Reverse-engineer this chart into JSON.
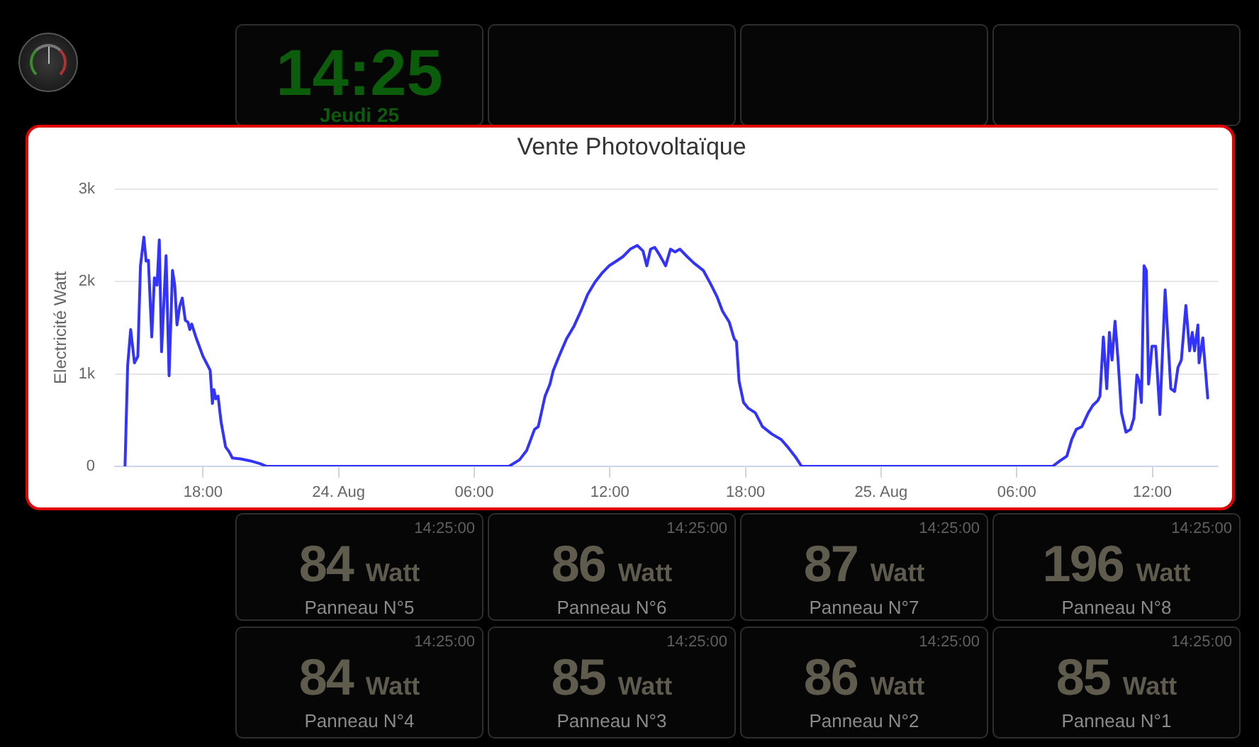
{
  "chart_data": {
    "type": "line",
    "title": "Vente Photovoltaïque",
    "ylabel": "Electricité Watt",
    "color": "#3333ff",
    "x": [
      "--08-23T14:33",
      "--08-23T14:40",
      "--08-23T14:48",
      "--08-23T14:58",
      "--08-23T15:07",
      "--08-23T15:14",
      "--08-23T15:23",
      "--08-23T15:29",
      "--08-23T15:35",
      "--08-23T15:44",
      "--08-23T15:51",
      "--08-23T15:58",
      "--08-23T16:04",
      "--08-23T16:10",
      "--08-23T16:22",
      "--08-23T16:30",
      "--08-23T16:39",
      "--08-23T16:45",
      "--08-23T16:51",
      "--08-23T16:58",
      "--08-23T17:05",
      "--08-23T17:13",
      "--08-23T17:20",
      "--08-23T17:25",
      "--08-23T17:30",
      "--08-23T17:41",
      "--08-23T18:00",
      "--08-23T18:19",
      "--08-23T18:25",
      "--08-23T18:29",
      "--08-23T18:34",
      "--08-23T18:40",
      "--08-23T18:48",
      "--08-23T19:00",
      "--08-23T19:09",
      "--08-23T19:18",
      "--08-23T19:40",
      "--08-23T20:05",
      "--08-23T20:31",
      "--08-23T20:49",
      "--08-24T07:32",
      "--08-24T08:00",
      "--08-24T08:19",
      "--08-24T08:40",
      "--08-24T08:50",
      "--08-24T09:08",
      "--08-24T09:21",
      "--08-24T09:30",
      "--08-24T09:46",
      "--08-24T10:05",
      "--08-24T10:24",
      "--08-24T10:43",
      "--08-24T11:01",
      "--08-24T11:20",
      "--08-24T11:39",
      "--08-24T11:58",
      "--08-24T12:17",
      "--08-24T12:35",
      "--08-24T12:54",
      "--08-24T13:13",
      "--08-24T13:28",
      "--08-24T13:38",
      "--08-24T13:48",
      "--08-24T13:59",
      "--08-24T14:10",
      "--08-24T14:28",
      "--08-24T14:41",
      "--08-24T14:53",
      "--08-24T15:06",
      "--08-24T15:25",
      "--08-24T15:43",
      "--08-24T16:08",
      "--08-24T16:28",
      "--08-24T16:44",
      "--08-24T16:59",
      "--08-24T17:17",
      "--08-24T17:30",
      "--08-24T17:36",
      "--08-24T17:43",
      "--08-24T17:55",
      "--08-24T18:07",
      "--08-24T18:26",
      "--08-24T18:45",
      "--08-24T19:10",
      "--08-24T19:35",
      "--08-24T19:54",
      "--08-24T20:13",
      "--08-24T20:29",
      "--08-25T07:35",
      "--08-25T07:55",
      "--08-25T08:13",
      "--08-25T08:26",
      "--08-25T08:38",
      "--08-25T08:53",
      "--08-25T09:10",
      "--08-25T09:22",
      "--08-25T09:35",
      "--08-25T09:41",
      "--08-25T09:50",
      "--08-25T09:59",
      "--08-25T10:06",
      "--08-25T10:13",
      "--08-25T10:21",
      "--08-25T10:29",
      "--08-25T10:38",
      "--08-25T10:50",
      "--08-25T11:02",
      "--08-25T11:11",
      "--08-25T11:19",
      "--08-25T11:25",
      "--08-25T11:31",
      "--08-25T11:38",
      "--08-25T11:44",
      "--08-25T11:50",
      "--08-25T11:59",
      "--08-25T12:09",
      "--08-25T12:20",
      "--08-25T12:34",
      "--08-25T12:49",
      "--08-25T12:59",
      "--08-25T13:08",
      "--08-25T13:17",
      "--08-25T13:29",
      "--08-25T13:39",
      "--08-25T13:46",
      "--08-25T13:52",
      "--08-25T14:01",
      "--08-25T14:04",
      "--08-25T14:14",
      "--08-25T14:27"
    ],
    "values": [
      0,
      1090,
      1480,
      1120,
      1190,
      2170,
      2480,
      2220,
      2230,
      1400,
      2040,
      1960,
      2450,
      1240,
      2280,
      980,
      2120,
      1960,
      1530,
      1730,
      1820,
      1580,
      1560,
      1480,
      1540,
      1400,
      1190,
      1040,
      680,
      830,
      730,
      760,
      480,
      210,
      160,
      90,
      80,
      60,
      30,
      0,
      0,
      70,
      170,
      400,
      430,
      760,
      890,
      1040,
      1200,
      1380,
      1510,
      1680,
      1860,
      1990,
      2090,
      2170,
      2220,
      2270,
      2350,
      2390,
      2330,
      2170,
      2350,
      2370,
      2300,
      2170,
      2350,
      2320,
      2350,
      2270,
      2200,
      2120,
      1970,
      1840,
      1680,
      1560,
      1380,
      1350,
      920,
      690,
      630,
      580,
      430,
      350,
      290,
      200,
      100,
      0,
      0,
      60,
      110,
      290,
      400,
      430,
      580,
      660,
      710,
      760,
      1400,
      840,
      1450,
      1150,
      1570,
      1150,
      580,
      370,
      400,
      520,
      990,
      920,
      690,
      2170,
      2120,
      890,
      1300,
      1300,
      560,
      1910,
      840,
      810,
      1070,
      1150,
      1740,
      1250,
      1450,
      1250,
      1530,
      1120,
      1390,
      740
    ],
    "xlim": [
      "--08-23T14:06",
      "--08-25T14:54"
    ],
    "xticks": [
      {
        "value": "--08-23T18:00",
        "label": "18:00"
      },
      {
        "value": "--08-24T00:00",
        "label": "24. Aug"
      },
      {
        "value": "--08-24T06:00",
        "label": "06:00"
      },
      {
        "value": "--08-24T12:00",
        "label": "12:00"
      },
      {
        "value": "--08-24T18:00",
        "label": "18:00"
      },
      {
        "value": "--08-25T00:00",
        "label": "25. Aug"
      },
      {
        "value": "--08-25T06:00",
        "label": "06:00"
      },
      {
        "value": "--08-25T12:00",
        "label": "12:00"
      }
    ],
    "ylim": [
      0,
      3000
    ],
    "yticks": [
      0,
      {
        "value": 1000,
        "label": "1k"
      },
      {
        "value": 2000,
        "label": "2k"
      },
      {
        "value": 3000,
        "label": "3k"
      }
    ],
    "grid": "y",
    "annotations": [
      "14:25",
      "Jeudi 25",
      "14:25:00",
      "84 Watt",
      "Panneau N°5",
      "14:25:00",
      "86 Watt",
      "Panneau N°6",
      "14:25:00",
      "87 Watt",
      "Panneau N°7",
      "14:25:00",
      "196 Watt",
      "Panneau N°8",
      "14:25:00",
      "84 Watt",
      "Panneau N°4",
      "14:25:00",
      "85 Watt",
      "Panneau N°3",
      "14:25:00",
      "86 Watt",
      "Panneau N°2",
      "14:25:00",
      "85 Watt",
      "Panneau N°1"
    ]
  }
}
